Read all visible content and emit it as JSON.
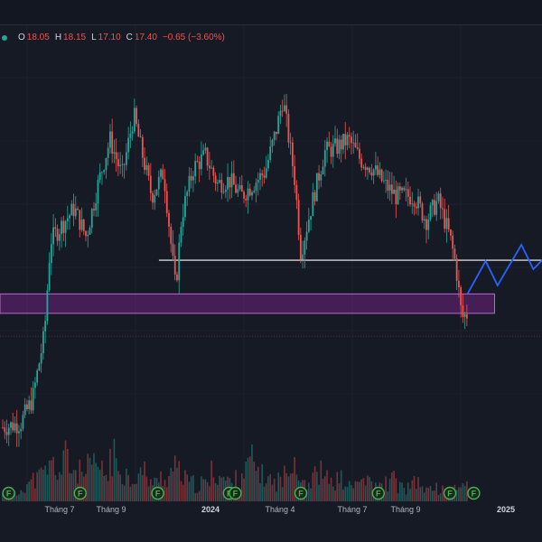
{
  "ohlc": {
    "open_label": "O",
    "open": "18.05",
    "high_label": "H",
    "high": "18.15",
    "low_label": "L",
    "low": "17.10",
    "close_label": "C",
    "close": "17.40",
    "change": "−0.65 (−3.60%)"
  },
  "colors": {
    "background": "#161a25",
    "up": "#26a69a",
    "down": "#ef5350",
    "projection": "#2962ff",
    "support_zone": "#9c27b0",
    "horizontal_line": "#ffffff",
    "event_marker": "#4caf50"
  },
  "chart_data": {
    "type": "candlestick",
    "x_axis_labels": [
      {
        "label": "Tháng 7",
        "year": false
      },
      {
        "label": "Tháng 9",
        "year": false
      },
      {
        "label": "2024",
        "year": true
      },
      {
        "label": "Tháng 4",
        "year": false
      },
      {
        "label": "Tháng 7",
        "year": false
      },
      {
        "label": "Tháng 9",
        "year": false
      },
      {
        "label": "2025",
        "year": true
      }
    ],
    "price_range": [
      14.6,
      24.4
    ],
    "price_path": [
      [
        0,
        15.2
      ],
      [
        3,
        15.3
      ],
      [
        5,
        15.9
      ],
      [
        7,
        17.5
      ],
      [
        8,
        19.8
      ],
      [
        10,
        20.2
      ],
      [
        12,
        20.6
      ],
      [
        14,
        19.9
      ],
      [
        16,
        21.2
      ],
      [
        18,
        22.3
      ],
      [
        20,
        21.4
      ],
      [
        22,
        22.9
      ],
      [
        23,
        22.2
      ],
      [
        25,
        20.9
      ],
      [
        27,
        21.5
      ],
      [
        29,
        18.6
      ],
      [
        30,
        20.4
      ],
      [
        32,
        21.6
      ],
      [
        34,
        21.9
      ],
      [
        36,
        21.2
      ],
      [
        38,
        21.3
      ],
      [
        40,
        20.9
      ],
      [
        42,
        21.2
      ],
      [
        44,
        21.5
      ],
      [
        46,
        22.6
      ],
      [
        47,
        23.3
      ],
      [
        49,
        21.3
      ],
      [
        50,
        19.5
      ],
      [
        52,
        20.8
      ],
      [
        54,
        22.0
      ],
      [
        56,
        22.1
      ],
      [
        58,
        22.3
      ],
      [
        60,
        21.8
      ],
      [
        62,
        21.6
      ],
      [
        64,
        21.2
      ],
      [
        66,
        20.9
      ],
      [
        67,
        20.9
      ],
      [
        69,
        20.9
      ],
      [
        71,
        20.3
      ],
      [
        73,
        20.8
      ],
      [
        75,
        19.9
      ],
      [
        76,
        19.2
      ],
      [
        77,
        17.9
      ],
      [
        78,
        18.0
      ]
    ],
    "volume_profile": [
      2,
      3,
      2,
      4,
      5,
      6,
      7,
      9,
      10,
      8,
      12,
      9,
      8,
      7,
      9,
      10,
      8,
      7,
      12,
      9,
      8,
      6,
      7,
      8,
      6,
      5,
      7,
      6,
      9,
      8,
      6,
      5,
      4,
      5,
      5,
      8,
      7,
      6,
      5,
      6,
      8,
      11,
      9,
      7,
      6,
      5,
      6,
      7,
      14,
      8,
      6,
      5,
      7,
      8,
      6,
      5,
      6,
      5,
      4,
      5,
      6,
      5,
      4,
      4,
      5,
      6,
      4,
      3,
      4,
      5,
      4,
      3,
      4,
      3,
      3,
      4,
      3,
      5
    ],
    "support_zone": [
      18.1,
      18.4
    ],
    "horizontal_line": 19.32,
    "last_close": 17.4,
    "projection_path": [
      [
        78,
        18.5
      ],
      [
        81,
        19.3
      ],
      [
        83,
        18.7
      ],
      [
        87,
        19.7
      ],
      [
        89,
        19.1
      ],
      [
        91,
        19.4
      ]
    ],
    "event_markers": [
      {
        "label": "F",
        "at": 1
      },
      {
        "label": "F",
        "at": 13
      },
      {
        "label": "F",
        "at": 26
      },
      {
        "label": "F",
        "at": 38
      },
      {
        "label": "F",
        "at": 39
      },
      {
        "label": "F",
        "at": 50
      },
      {
        "label": "F",
        "at": 63
      },
      {
        "label": "F",
        "at": 75
      },
      {
        "label": "F",
        "at": 79
      }
    ]
  }
}
